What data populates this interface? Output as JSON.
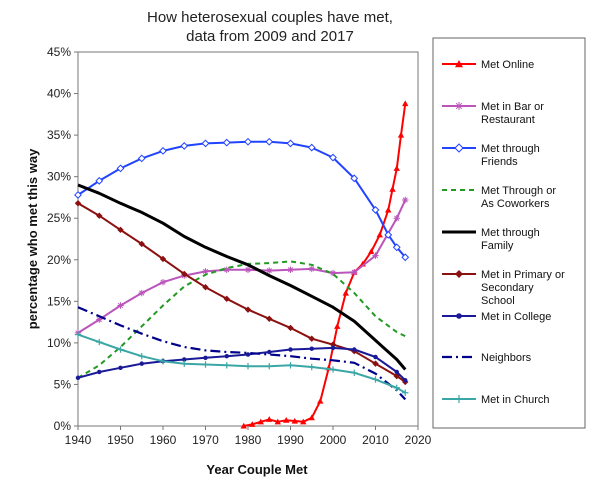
{
  "chart_data": {
    "type": "line",
    "title_lines": [
      "How heterosexual couples have met,",
      "data from 2009 and 2017"
    ],
    "xlabel": "Year Couple Met",
    "ylabel": "percentage who met this way",
    "xlim": [
      1940,
      2020
    ],
    "ylim": [
      0,
      45
    ],
    "x_ticks": [
      "1940",
      "1950",
      "1960",
      "1970",
      "1980",
      "1990",
      "2000",
      "2010",
      "2020"
    ],
    "y_ticks": [
      "0%",
      "5%",
      "10%",
      "15%",
      "20%",
      "25%",
      "30%",
      "35%",
      "40%",
      "45%"
    ],
    "grid": false,
    "legend_position": "right",
    "series": [
      {
        "name": "Met Online",
        "legend_lines": [
          "Met Online"
        ],
        "color": "#ff0000",
        "dash": "",
        "width": 2,
        "marker": "triangle",
        "points": [
          [
            1979,
            0
          ],
          [
            1981,
            0.2
          ],
          [
            1983,
            0.5
          ],
          [
            1985,
            0.8
          ],
          [
            1987,
            0.5
          ],
          [
            1989,
            0.7
          ],
          [
            1991,
            0.6
          ],
          [
            1993,
            0.5
          ],
          [
            1995,
            1
          ],
          [
            1997,
            3
          ],
          [
            1999,
            7
          ],
          [
            2001,
            12
          ],
          [
            2003,
            16
          ],
          [
            2005,
            18.5
          ],
          [
            2007,
            19.5
          ],
          [
            2009,
            21
          ],
          [
            2011,
            23
          ],
          [
            2013,
            26
          ],
          [
            2014,
            28.5
          ],
          [
            2015,
            31
          ],
          [
            2016,
            35
          ],
          [
            2017,
            38.8
          ]
        ]
      },
      {
        "name": "Met in Bar or Restaurant",
        "legend_lines": [
          "Met in Bar or",
          "Restaurant"
        ],
        "color": "#bb55bb",
        "dash": "",
        "width": 2,
        "marker": "asterisk",
        "points": [
          [
            1940,
            11.2
          ],
          [
            1945,
            12.8
          ],
          [
            1950,
            14.5
          ],
          [
            1955,
            16
          ],
          [
            1960,
            17.3
          ],
          [
            1965,
            18.1
          ],
          [
            1970,
            18.6
          ],
          [
            1975,
            18.8
          ],
          [
            1980,
            18.8
          ],
          [
            1985,
            18.7
          ],
          [
            1990,
            18.8
          ],
          [
            1995,
            18.9
          ],
          [
            2000,
            18.4
          ],
          [
            2005,
            18.5
          ],
          [
            2010,
            20.5
          ],
          [
            2015,
            25
          ],
          [
            2017,
            27.2
          ]
        ]
      },
      {
        "name": "Met through Friends",
        "legend_lines": [
          "Met through",
          "Friends"
        ],
        "color": "#2244ff",
        "dash": "",
        "width": 2,
        "marker": "diamond-open",
        "points": [
          [
            1940,
            27.8
          ],
          [
            1945,
            29.5
          ],
          [
            1950,
            31
          ],
          [
            1955,
            32.2
          ],
          [
            1960,
            33.1
          ],
          [
            1965,
            33.7
          ],
          [
            1970,
            34
          ],
          [
            1975,
            34.1
          ],
          [
            1980,
            34.2
          ],
          [
            1985,
            34.2
          ],
          [
            1990,
            34
          ],
          [
            1995,
            33.5
          ],
          [
            2000,
            32.3
          ],
          [
            2005,
            29.8
          ],
          [
            2010,
            26
          ],
          [
            2013,
            23
          ],
          [
            2015,
            21.5
          ],
          [
            2017,
            20.3
          ]
        ]
      },
      {
        "name": "Met Through or As Coworkers",
        "legend_lines": [
          "Met Through or",
          "As Coworkers"
        ],
        "color": "#229922",
        "dash": "5,4",
        "width": 2,
        "marker": "none",
        "points": [
          [
            1940,
            5.8
          ],
          [
            1945,
            7.3
          ],
          [
            1950,
            9.5
          ],
          [
            1955,
            12
          ],
          [
            1960,
            14.5
          ],
          [
            1965,
            16.8
          ],
          [
            1970,
            18.2
          ],
          [
            1975,
            19
          ],
          [
            1980,
            19.5
          ],
          [
            1985,
            19.6
          ],
          [
            1990,
            19.8
          ],
          [
            1995,
            19.4
          ],
          [
            2000,
            18.3
          ],
          [
            2005,
            16
          ],
          [
            2010,
            13.2
          ],
          [
            2015,
            11.3
          ],
          [
            2017,
            10.8
          ]
        ]
      },
      {
        "name": "Met through Family",
        "legend_lines": [
          "Met through",
          "Family"
        ],
        "color": "#000000",
        "dash": "",
        "width": 3,
        "marker": "none",
        "points": [
          [
            1940,
            29
          ],
          [
            1945,
            28
          ],
          [
            1950,
            26.8
          ],
          [
            1955,
            25.7
          ],
          [
            1960,
            24.4
          ],
          [
            1965,
            22.8
          ],
          [
            1970,
            21.5
          ],
          [
            1975,
            20.4
          ],
          [
            1980,
            19.4
          ],
          [
            1985,
            18.1
          ],
          [
            1990,
            16.9
          ],
          [
            1995,
            15.6
          ],
          [
            2000,
            14.3
          ],
          [
            2005,
            12.6
          ],
          [
            2010,
            10.3
          ],
          [
            2015,
            8
          ],
          [
            2017,
            6.8
          ]
        ]
      },
      {
        "name": "Met in Primary or Secondary School",
        "legend_lines": [
          "Met in Primary or",
          "Secondary",
          "School"
        ],
        "color": "#8b1010",
        "dash": "",
        "width": 2,
        "marker": "diamond",
        "points": [
          [
            1940,
            26.8
          ],
          [
            1945,
            25.3
          ],
          [
            1950,
            23.6
          ],
          [
            1955,
            21.9
          ],
          [
            1960,
            20.1
          ],
          [
            1965,
            18.3
          ],
          [
            1970,
            16.7
          ],
          [
            1975,
            15.3
          ],
          [
            1980,
            14
          ],
          [
            1985,
            12.9
          ],
          [
            1990,
            11.8
          ],
          [
            1995,
            10.5
          ],
          [
            2000,
            9.8
          ],
          [
            2005,
            9
          ],
          [
            2010,
            7.5
          ],
          [
            2015,
            6
          ],
          [
            2017,
            5.3
          ]
        ]
      },
      {
        "name": "Met in College",
        "legend_lines": [
          "Met in College"
        ],
        "color": "#1a1a99",
        "dash": "",
        "width": 2,
        "marker": "dot",
        "points": [
          [
            1940,
            5.8
          ],
          [
            1945,
            6.5
          ],
          [
            1950,
            7
          ],
          [
            1955,
            7.5
          ],
          [
            1960,
            7.8
          ],
          [
            1965,
            8
          ],
          [
            1970,
            8.2
          ],
          [
            1975,
            8.4
          ],
          [
            1980,
            8.6
          ],
          [
            1985,
            8.9
          ],
          [
            1990,
            9.2
          ],
          [
            1995,
            9.3
          ],
          [
            2000,
            9.4
          ],
          [
            2005,
            9.2
          ],
          [
            2010,
            8.3
          ],
          [
            2015,
            6.5
          ],
          [
            2017,
            5.5
          ]
        ]
      },
      {
        "name": "Neighbors",
        "legend_lines": [
          "Neighbors"
        ],
        "color": "#00008b",
        "dash": "10,4,2,4",
        "width": 2.2,
        "marker": "none",
        "points": [
          [
            1940,
            14.3
          ],
          [
            1945,
            13.2
          ],
          [
            1950,
            12.1
          ],
          [
            1955,
            11.1
          ],
          [
            1960,
            10.2
          ],
          [
            1965,
            9.5
          ],
          [
            1970,
            9.1
          ],
          [
            1975,
            8.9
          ],
          [
            1980,
            8.8
          ],
          [
            1985,
            8.6
          ],
          [
            1990,
            8.4
          ],
          [
            1995,
            8.1
          ],
          [
            2000,
            7.9
          ],
          [
            2005,
            7.6
          ],
          [
            2010,
            6.3
          ],
          [
            2015,
            4.3
          ],
          [
            2017,
            3.2
          ]
        ]
      },
      {
        "name": "Met in Church",
        "legend_lines": [
          "Met in Church"
        ],
        "color": "#3aa6a6",
        "dash": "",
        "width": 2,
        "marker": "plus",
        "points": [
          [
            1940,
            11
          ],
          [
            1945,
            10.1
          ],
          [
            1950,
            9.2
          ],
          [
            1955,
            8.4
          ],
          [
            1960,
            7.8
          ],
          [
            1965,
            7.5
          ],
          [
            1970,
            7.4
          ],
          [
            1975,
            7.3
          ],
          [
            1980,
            7.2
          ],
          [
            1985,
            7.2
          ],
          [
            1990,
            7.3
          ],
          [
            1995,
            7.1
          ],
          [
            2000,
            6.8
          ],
          [
            2005,
            6.4
          ],
          [
            2010,
            5.6
          ],
          [
            2015,
            4.6
          ],
          [
            2017,
            4
          ]
        ]
      }
    ]
  }
}
